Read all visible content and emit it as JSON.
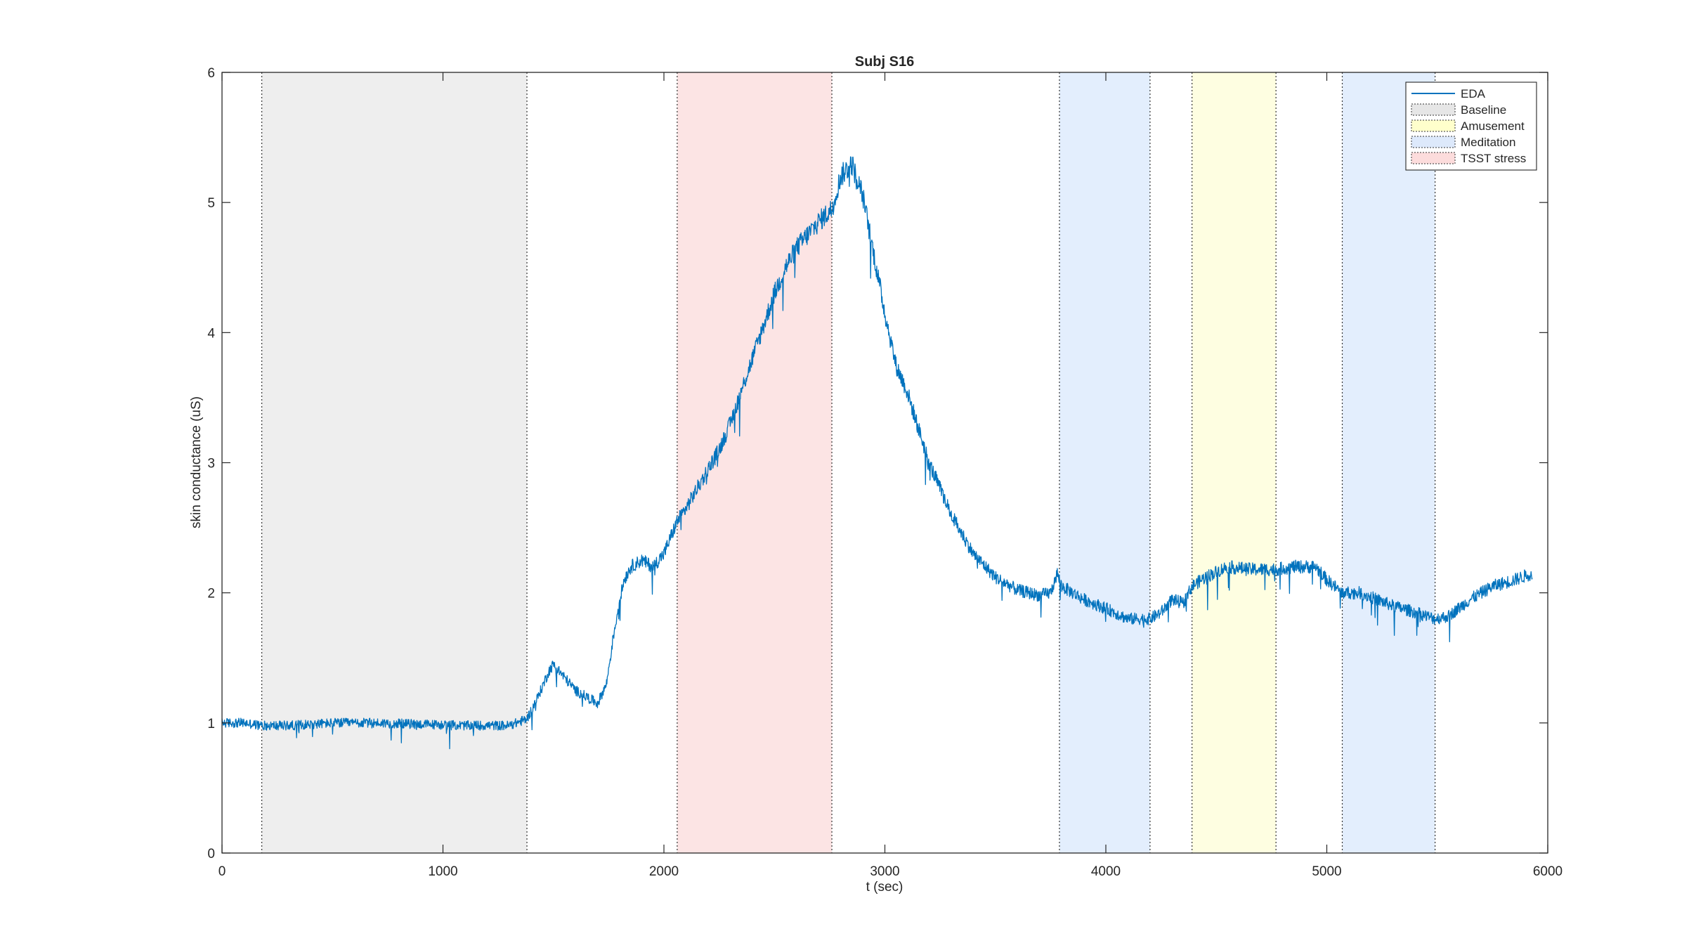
{
  "chart_data": {
    "type": "line",
    "title": "Subj S16",
    "xlabel": "t (sec)",
    "ylabel": "skin conductance (uS)",
    "xlim": [
      0,
      6000
    ],
    "ylim": [
      0,
      6
    ],
    "x_ticks": [
      0,
      1000,
      2000,
      3000,
      4000,
      5000,
      6000
    ],
    "y_ticks": [
      0,
      1,
      2,
      3,
      4,
      5,
      6
    ],
    "grid": false,
    "legend_position": "top-right",
    "legend": [
      {
        "label": "EDA",
        "kind": "line",
        "color": "#0072bd"
      },
      {
        "label": "Baseline",
        "kind": "patch",
        "color": "#e6e6e6"
      },
      {
        "label": "Amusement",
        "kind": "patch",
        "color": "#ffffcc"
      },
      {
        "label": "Meditation",
        "kind": "patch",
        "color": "#dde9fb"
      },
      {
        "label": "TSST stress",
        "kind": "patch",
        "color": "#fcdcdc"
      }
    ],
    "regions": [
      {
        "label": "Baseline",
        "start": 180,
        "end": 1380,
        "color": "#eeeeee"
      },
      {
        "label": "TSST stress",
        "start": 2060,
        "end": 2760,
        "color": "#fce4e4"
      },
      {
        "label": "Meditation",
        "start": 3790,
        "end": 4200,
        "color": "#e3eefd"
      },
      {
        "label": "Amusement",
        "start": 4390,
        "end": 4770,
        "color": "#fefee1"
      },
      {
        "label": "Meditation",
        "start": 5070,
        "end": 5490,
        "color": "#e3eefd"
      }
    ],
    "series": [
      {
        "name": "EDA",
        "color": "#0072bd",
        "x": [
          0,
          100,
          180,
          300,
          500,
          700,
          900,
          1100,
          1300,
          1380,
          1430,
          1480,
          1500,
          1550,
          1600,
          1650,
          1700,
          1740,
          1770,
          1800,
          1820,
          1850,
          1900,
          1950,
          2000,
          2060,
          2100,
          2150,
          2200,
          2250,
          2300,
          2350,
          2400,
          2450,
          2500,
          2550,
          2600,
          2650,
          2700,
          2760,
          2800,
          2850,
          2900,
          2950,
          3000,
          3050,
          3100,
          3200,
          3300,
          3400,
          3500,
          3600,
          3700,
          3750,
          3780,
          3800,
          3850,
          3900,
          4000,
          4100,
          4200,
          4250,
          4300,
          4350,
          4390,
          4450,
          4550,
          4650,
          4770,
          4850,
          4950,
          5000,
          5070,
          5150,
          5300,
          5400,
          5490,
          5550,
          5650,
          5750,
          5850,
          5930
        ],
        "values": [
          1.0,
          1.0,
          0.98,
          0.98,
          1.0,
          1.0,
          0.99,
          0.98,
          0.98,
          1.03,
          1.2,
          1.4,
          1.45,
          1.35,
          1.25,
          1.2,
          1.15,
          1.3,
          1.65,
          1.95,
          2.1,
          2.2,
          2.25,
          2.2,
          2.3,
          2.55,
          2.65,
          2.8,
          2.95,
          3.1,
          3.3,
          3.55,
          3.8,
          4.05,
          4.3,
          4.5,
          4.65,
          4.75,
          4.85,
          4.95,
          5.2,
          5.3,
          5.05,
          4.6,
          4.15,
          3.75,
          3.55,
          3.0,
          2.6,
          2.3,
          2.12,
          2.02,
          1.98,
          2.0,
          2.15,
          2.05,
          2.0,
          1.95,
          1.88,
          1.8,
          1.8,
          1.85,
          1.95,
          1.92,
          2.05,
          2.12,
          2.2,
          2.18,
          2.18,
          2.2,
          2.2,
          2.1,
          2.0,
          2.0,
          1.9,
          1.85,
          1.8,
          1.82,
          1.95,
          2.05,
          2.1,
          2.15
        ]
      }
    ]
  }
}
